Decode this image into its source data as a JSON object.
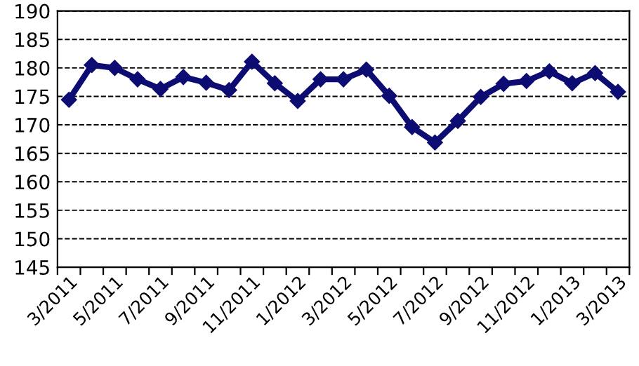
{
  "chart_data": {
    "type": "line",
    "categories": [
      "3/2011",
      null,
      "5/2011",
      null,
      "7/2011",
      null,
      "9/2011",
      null,
      "11/2011",
      null,
      "1/2012",
      null,
      "3/2012",
      null,
      "5/2012",
      null,
      "7/2012",
      null,
      "9/2012",
      null,
      "11/2012",
      null,
      "1/2013",
      null,
      "3/2013"
    ],
    "series": [
      {
        "color": "#0c0c72",
        "values": [
          174.4,
          180.5,
          180.0,
          178.0,
          176.3,
          178.4,
          177.4,
          176.1,
          181.1,
          177.3,
          174.2,
          178.0,
          178.0,
          179.7,
          175.1,
          169.6,
          166.9,
          170.7,
          174.9,
          177.2,
          177.7,
          179.4,
          177.3,
          179.1,
          175.8
        ]
      }
    ],
    "ylim": [
      145,
      190
    ],
    "yticks": [
      145,
      150,
      155,
      160,
      165,
      170,
      175,
      180,
      185,
      190
    ],
    "grid": "y",
    "marker": "diamond",
    "line_style": "solid",
    "legend": false
  }
}
